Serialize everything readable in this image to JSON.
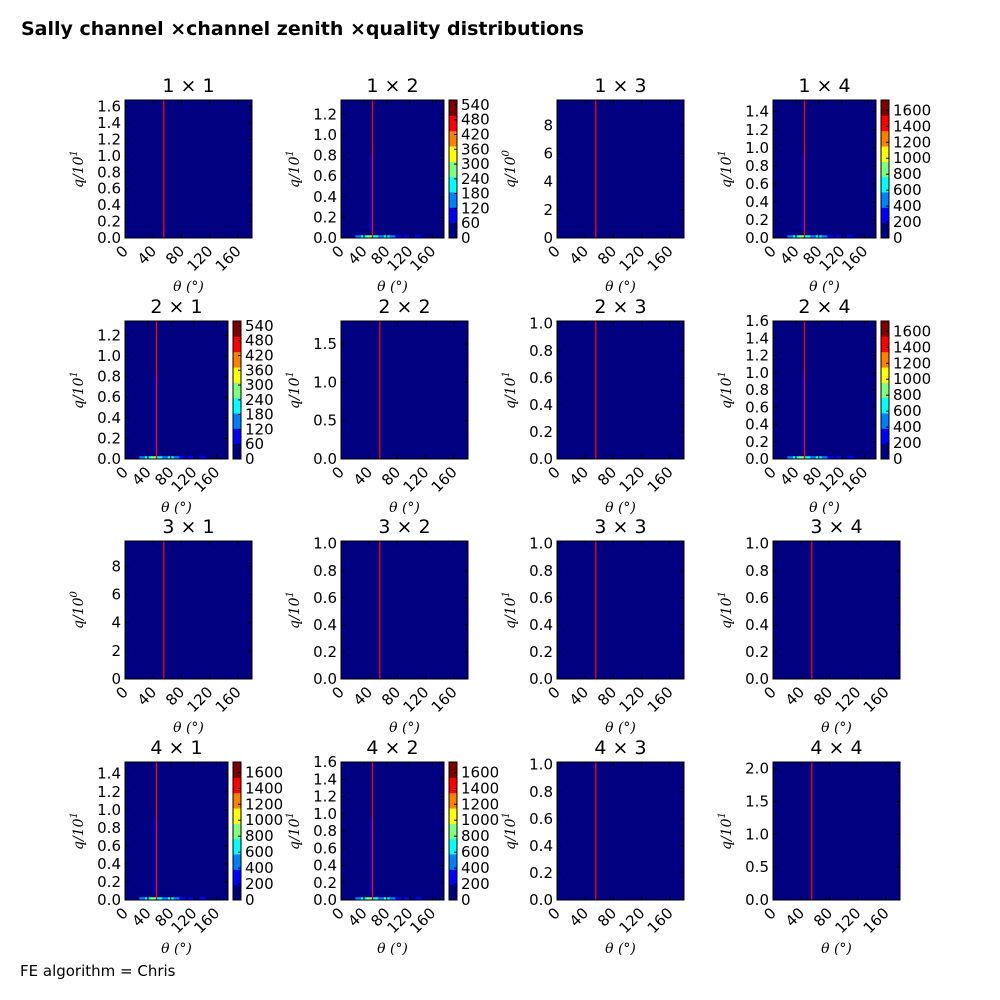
{
  "title": "Sally channel ×channel zenith ×quality distributions",
  "footer": "FE algorithm = Chris",
  "colors": {
    "background": "#000080",
    "marker_line": "#ff0000",
    "jet": [
      "#00007f",
      "#0000ff",
      "#007fff",
      "#00ffff",
      "#7fff7f",
      "#ffff00",
      "#ff7f00",
      "#ff0000",
      "#7f0000"
    ]
  },
  "chart_data": [
    {
      "type": "heatmap",
      "title": "1  × 1",
      "xlabel": "θ (°)",
      "ylabel": "q/10^1",
      "x_ticks": [
        "0",
        "40",
        "80",
        "120",
        "160"
      ],
      "y_ticks": [
        "0.0",
        "0.2",
        "0.4",
        "0.6",
        "0.8",
        "1.0",
        "1.2",
        "1.4",
        "1.6"
      ],
      "xlim": [
        0,
        180
      ],
      "ylim": [
        0,
        1.68
      ],
      "vline_x": 55,
      "colorbar": null
    },
    {
      "type": "heatmap",
      "title": "1  × 2",
      "xlabel": "θ (°)",
      "ylabel": "q/10^1",
      "x_ticks": [
        "0",
        "40",
        "80",
        "120",
        "160"
      ],
      "y_ticks": [
        "0.0",
        "0.2",
        "0.4",
        "0.6",
        "0.8",
        "1.0",
        "1.2"
      ],
      "xlim": [
        0,
        180
      ],
      "ylim": [
        0,
        1.34
      ],
      "vline_x": 55,
      "colorbar": {
        "ticks": [
          "0",
          "60",
          "120",
          "180",
          "240",
          "300",
          "360",
          "420",
          "480",
          "540"
        ],
        "max": 560
      }
    },
    {
      "type": "heatmap",
      "title": "1  × 3",
      "xlabel": "θ (°)",
      "ylabel": "q/10^0",
      "x_ticks": [
        "0",
        "40",
        "80",
        "120",
        "160"
      ],
      "y_ticks": [
        "0",
        "2",
        "4",
        "6",
        "8"
      ],
      "xlim": [
        0,
        180
      ],
      "ylim": [
        0,
        9.8
      ],
      "vline_x": 55,
      "colorbar": null
    },
    {
      "type": "heatmap",
      "title": "1  × 4",
      "xlabel": "θ (°)",
      "ylabel": "q/10^1",
      "x_ticks": [
        "0",
        "40",
        "80",
        "120",
        "160"
      ],
      "y_ticks": [
        "0.0",
        "0.2",
        "0.4",
        "0.6",
        "0.8",
        "1.0",
        "1.2",
        "1.4"
      ],
      "xlim": [
        0,
        180
      ],
      "ylim": [
        0,
        1.53
      ],
      "vline_x": 55,
      "colorbar": {
        "ticks": [
          "0",
          "200",
          "400",
          "600",
          "800",
          "1000",
          "1200",
          "1400",
          "1600"
        ],
        "max": 1730
      }
    },
    {
      "type": "heatmap",
      "title": "2  × 1",
      "xlabel": "θ (°)",
      "ylabel": "q/10^1",
      "x_ticks": [
        "0",
        "40",
        "80",
        "120",
        "160"
      ],
      "y_ticks": [
        "0.0",
        "0.2",
        "0.4",
        "0.6",
        "0.8",
        "1.0",
        "1.2"
      ],
      "xlim": [
        0,
        180
      ],
      "ylim": [
        0,
        1.34
      ],
      "vline_x": 55,
      "colorbar": {
        "ticks": [
          "0",
          "60",
          "120",
          "180",
          "240",
          "300",
          "360",
          "420",
          "480",
          "540"
        ],
        "max": 560
      }
    },
    {
      "type": "heatmap",
      "title": "2  × 2",
      "xlabel": "θ (°)",
      "ylabel": "q/10^1",
      "x_ticks": [
        "0",
        "40",
        "80",
        "120",
        "160"
      ],
      "y_ticks": [
        "0.0",
        "0.5",
        "1.0",
        "1.5"
      ],
      "xlim": [
        0,
        180
      ],
      "ylim": [
        0,
        1.8
      ],
      "vline_x": 55,
      "colorbar": null
    },
    {
      "type": "heatmap",
      "title": "2  × 3",
      "xlabel": "θ (°)",
      "ylabel": "q/10^1",
      "x_ticks": [
        "0",
        "40",
        "80",
        "120",
        "160"
      ],
      "y_ticks": [
        "0.0",
        "0.2",
        "0.4",
        "0.6",
        "0.8",
        "1.0"
      ],
      "xlim": [
        0,
        180
      ],
      "ylim": [
        0,
        1.02
      ],
      "vline_x": 55,
      "colorbar": null
    },
    {
      "type": "heatmap",
      "title": "2  × 4",
      "xlabel": "θ (°)",
      "ylabel": "q/10^1",
      "x_ticks": [
        "0",
        "40",
        "80",
        "120",
        "160"
      ],
      "y_ticks": [
        "0.0",
        "0.2",
        "0.4",
        "0.6",
        "0.8",
        "1.0",
        "1.2",
        "1.4",
        "1.6"
      ],
      "xlim": [
        0,
        180
      ],
      "ylim": [
        0,
        1.6
      ],
      "vline_x": 55,
      "colorbar": {
        "ticks": [
          "0",
          "200",
          "400",
          "600",
          "800",
          "1000",
          "1200",
          "1400",
          "1600"
        ],
        "max": 1730
      }
    },
    {
      "type": "heatmap",
      "title": "3  × 1",
      "xlabel": "θ (°)",
      "ylabel": "q/10^0",
      "x_ticks": [
        "0",
        "40",
        "80",
        "120",
        "160"
      ],
      "y_ticks": [
        "0",
        "2",
        "4",
        "6",
        "8"
      ],
      "xlim": [
        0,
        180
      ],
      "ylim": [
        0,
        9.8
      ],
      "vline_x": 55,
      "colorbar": null
    },
    {
      "type": "heatmap",
      "title": "3  × 2",
      "xlabel": "θ (°)",
      "ylabel": "q/10^1",
      "x_ticks": [
        "0",
        "40",
        "80",
        "120",
        "160"
      ],
      "y_ticks": [
        "0.0",
        "0.2",
        "0.4",
        "0.6",
        "0.8",
        "1.0"
      ],
      "xlim": [
        0,
        180
      ],
      "ylim": [
        0,
        1.02
      ],
      "vline_x": 55,
      "colorbar": null
    },
    {
      "type": "heatmap",
      "title": "3  × 3",
      "xlabel": "θ (°)",
      "ylabel": "q/10^1",
      "x_ticks": [
        "0",
        "40",
        "80",
        "120",
        "160"
      ],
      "y_ticks": [
        "0.0",
        "0.2",
        "0.4",
        "0.6",
        "0.8",
        "1.0"
      ],
      "xlim": [
        0,
        180
      ],
      "ylim": [
        0,
        1.02
      ],
      "vline_x": 55,
      "colorbar": null
    },
    {
      "type": "heatmap",
      "title": "3  × 4",
      "xlabel": "θ (°)",
      "ylabel": "q/10^1",
      "x_ticks": [
        "0",
        "40",
        "80",
        "120",
        "160"
      ],
      "y_ticks": [
        "0.0",
        "0.2",
        "0.4",
        "0.6",
        "0.8",
        "1.0"
      ],
      "xlim": [
        0,
        180
      ],
      "ylim": [
        0,
        1.02
      ],
      "vline_x": 55,
      "colorbar": null
    },
    {
      "type": "heatmap",
      "title": "4  × 1",
      "xlabel": "θ (°)",
      "ylabel": "q/10^1",
      "x_ticks": [
        "0",
        "40",
        "80",
        "120",
        "160"
      ],
      "y_ticks": [
        "0.0",
        "0.2",
        "0.4",
        "0.6",
        "0.8",
        "1.0",
        "1.2",
        "1.4"
      ],
      "xlim": [
        0,
        180
      ],
      "ylim": [
        0,
        1.53
      ],
      "vline_x": 55,
      "colorbar": {
        "ticks": [
          "0",
          "200",
          "400",
          "600",
          "800",
          "1000",
          "1200",
          "1400",
          "1600"
        ],
        "max": 1730
      }
    },
    {
      "type": "heatmap",
      "title": "4  × 2",
      "xlabel": "θ (°)",
      "ylabel": "q/10^1",
      "x_ticks": [
        "0",
        "40",
        "80",
        "120",
        "160"
      ],
      "y_ticks": [
        "0.0",
        "0.2",
        "0.4",
        "0.6",
        "0.8",
        "1.0",
        "1.2",
        "1.4",
        "1.6"
      ],
      "xlim": [
        0,
        180
      ],
      "ylim": [
        0,
        1.6
      ],
      "vline_x": 55,
      "colorbar": {
        "ticks": [
          "0",
          "200",
          "400",
          "600",
          "800",
          "1000",
          "1200",
          "1400",
          "1600"
        ],
        "max": 1730
      }
    },
    {
      "type": "heatmap",
      "title": "4  × 3",
      "xlabel": "θ (°)",
      "ylabel": "q/10^1",
      "x_ticks": [
        "0",
        "40",
        "80",
        "120",
        "160"
      ],
      "y_ticks": [
        "0.0",
        "0.2",
        "0.4",
        "0.6",
        "0.8",
        "1.0"
      ],
      "xlim": [
        0,
        180
      ],
      "ylim": [
        0,
        1.02
      ],
      "vline_x": 55,
      "colorbar": null
    },
    {
      "type": "heatmap",
      "title": "4  × 4",
      "xlabel": "θ (°)",
      "ylabel": "q/10^1",
      "x_ticks": [
        "0",
        "40",
        "80",
        "120",
        "160"
      ],
      "y_ticks": [
        "0.0",
        "0.5",
        "1.0",
        "1.5",
        "2.0"
      ],
      "xlim": [
        0,
        180
      ],
      "ylim": [
        0,
        2.1
      ],
      "vline_x": 55,
      "colorbar": null
    }
  ]
}
